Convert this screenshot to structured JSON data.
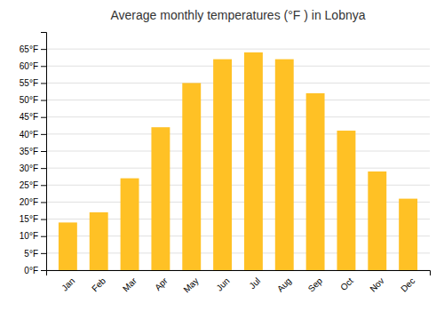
{
  "chart_data": {
    "type": "bar",
    "title": "Average monthly temperatures (°F ) in Lobnya",
    "categories": [
      "Jan",
      "Feb",
      "Mar",
      "Apr",
      "May",
      "Jun",
      "Jul",
      "Aug",
      "Sep",
      "Oct",
      "Nov",
      "Dec"
    ],
    "values": [
      14,
      17,
      27,
      42,
      55,
      62,
      64,
      62,
      52,
      41,
      29,
      21
    ],
    "color": "#FFC125",
    "ylim": [
      0,
      70
    ],
    "yticks": [
      {
        "value": 0,
        "label": "0°F"
      },
      {
        "value": 5,
        "label": "5°F"
      },
      {
        "value": 10,
        "label": "10°F"
      },
      {
        "value": 15,
        "label": "15°F"
      },
      {
        "value": 20,
        "label": "20°F"
      },
      {
        "value": 25,
        "label": "25°F"
      },
      {
        "value": 30,
        "label": "30°F"
      },
      {
        "value": 35,
        "label": "35°F"
      },
      {
        "value": 40,
        "label": "40°F"
      },
      {
        "value": 45,
        "label": "45°F"
      },
      {
        "value": 50,
        "label": "50°F"
      },
      {
        "value": 55,
        "label": "55°F"
      },
      {
        "value": 60,
        "label": "60°F"
      },
      {
        "value": 65,
        "label": "65°F"
      }
    ],
    "grid": true
  }
}
